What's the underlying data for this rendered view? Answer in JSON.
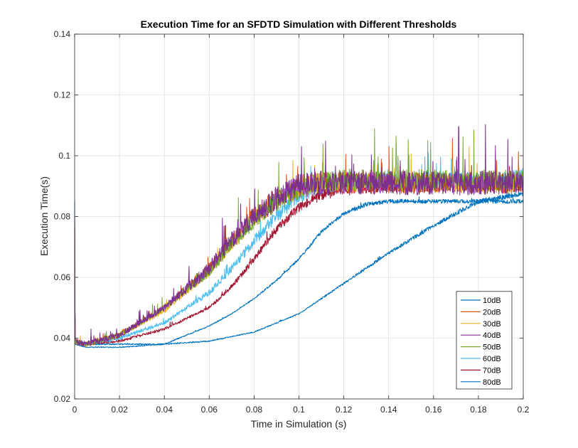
{
  "chart_data": {
    "type": "line",
    "title": "Execution Time for an SFDTD Simulation with Different Thresholds",
    "xlabel": "Time in Simulation (s)",
    "ylabel": "Execution Time(s)",
    "xlim": [
      0,
      0.2
    ],
    "ylim": [
      0.02,
      0.14
    ],
    "xticks": [
      0,
      0.02,
      0.04,
      0.06,
      0.08,
      0.1,
      0.12,
      0.14,
      0.16,
      0.18,
      0.2
    ],
    "xtick_labels": [
      "0",
      "0.02",
      "0.04",
      "0.06",
      "0.08",
      "0.1",
      "0.12",
      "0.14",
      "0.16",
      "0.18",
      "0.2"
    ],
    "yticks": [
      0.02,
      0.04,
      0.06,
      0.08,
      0.1,
      0.12,
      0.14
    ],
    "ytick_labels": [
      "0.02",
      "0.04",
      "0.06",
      "0.08",
      "0.1",
      "0.12",
      "0.14"
    ],
    "grid": true,
    "legend_position": "bottom-right",
    "series": [
      {
        "name": "10dB",
        "color": "#0072bd",
        "x": [
          0,
          0.005,
          0.02,
          0.04,
          0.06,
          0.08,
          0.09,
          0.1,
          0.11,
          0.12,
          0.14,
          0.16,
          0.18,
          0.2
        ],
        "y": [
          0.039,
          0.038,
          0.038,
          0.038,
          0.039,
          0.042,
          0.045,
          0.048,
          0.053,
          0.058,
          0.068,
          0.077,
          0.085,
          0.0875
        ]
      },
      {
        "name": "20dB",
        "color": "#d95319",
        "x": [
          0,
          0.005,
          0.02,
          0.04,
          0.06,
          0.07,
          0.08,
          0.09,
          0.1,
          0.11,
          0.12,
          0.14,
          0.16,
          0.18,
          0.2
        ],
        "y": [
          0.039,
          0.038,
          0.041,
          0.05,
          0.063,
          0.072,
          0.08,
          0.086,
          0.09,
          0.091,
          0.091,
          0.091,
          0.091,
          0.091,
          0.091
        ]
      },
      {
        "name": "30dB",
        "color": "#edb120",
        "x": [
          0,
          0.005,
          0.02,
          0.04,
          0.06,
          0.07,
          0.08,
          0.09,
          0.1,
          0.11,
          0.12,
          0.14,
          0.16,
          0.18,
          0.2
        ],
        "y": [
          0.039,
          0.038,
          0.041,
          0.049,
          0.062,
          0.071,
          0.079,
          0.085,
          0.089,
          0.091,
          0.091,
          0.091,
          0.091,
          0.091,
          0.091
        ]
      },
      {
        "name": "40dB",
        "color": "#7e2f8e",
        "x": [
          0,
          0.005,
          0.02,
          0.04,
          0.06,
          0.07,
          0.08,
          0.09,
          0.1,
          0.11,
          0.12,
          0.14,
          0.16,
          0.18,
          0.2
        ],
        "y": [
          0.039,
          0.038,
          0.041,
          0.05,
          0.063,
          0.072,
          0.08,
          0.086,
          0.09,
          0.091,
          0.091,
          0.091,
          0.091,
          0.091,
          0.091
        ]
      },
      {
        "name": "50dB",
        "color": "#77ac30",
        "x": [
          0,
          0.005,
          0.02,
          0.04,
          0.06,
          0.07,
          0.08,
          0.09,
          0.1,
          0.11,
          0.12,
          0.14,
          0.16,
          0.18,
          0.2
        ],
        "y": [
          0.039,
          0.038,
          0.041,
          0.05,
          0.062,
          0.071,
          0.079,
          0.085,
          0.089,
          0.091,
          0.092,
          0.092,
          0.092,
          0.092,
          0.092
        ]
      },
      {
        "name": "60dB",
        "color": "#4dbeee",
        "x": [
          0,
          0.005,
          0.02,
          0.04,
          0.06,
          0.07,
          0.08,
          0.09,
          0.1,
          0.11,
          0.12,
          0.14,
          0.16,
          0.18,
          0.2
        ],
        "y": [
          0.039,
          0.038,
          0.04,
          0.045,
          0.055,
          0.063,
          0.072,
          0.08,
          0.087,
          0.09,
          0.091,
          0.092,
          0.092,
          0.092,
          0.093
        ]
      },
      {
        "name": "70dB",
        "color": "#a2142f",
        "x": [
          0,
          0.005,
          0.02,
          0.04,
          0.06,
          0.07,
          0.08,
          0.09,
          0.1,
          0.11,
          0.12,
          0.14,
          0.16,
          0.18,
          0.2
        ],
        "y": [
          0.039,
          0.038,
          0.039,
          0.043,
          0.05,
          0.057,
          0.066,
          0.076,
          0.083,
          0.087,
          0.089,
          0.09,
          0.09,
          0.09,
          0.09
        ]
      },
      {
        "name": "80dB",
        "color": "#0072bd",
        "x": [
          0,
          0.005,
          0.02,
          0.04,
          0.05,
          0.06,
          0.07,
          0.08,
          0.09,
          0.1,
          0.11,
          0.12,
          0.13,
          0.14,
          0.16,
          0.18,
          0.2
        ],
        "y": [
          0.038,
          0.037,
          0.037,
          0.038,
          0.041,
          0.044,
          0.048,
          0.053,
          0.059,
          0.066,
          0.075,
          0.081,
          0.084,
          0.085,
          0.085,
          0.085,
          0.085
        ]
      }
    ]
  }
}
